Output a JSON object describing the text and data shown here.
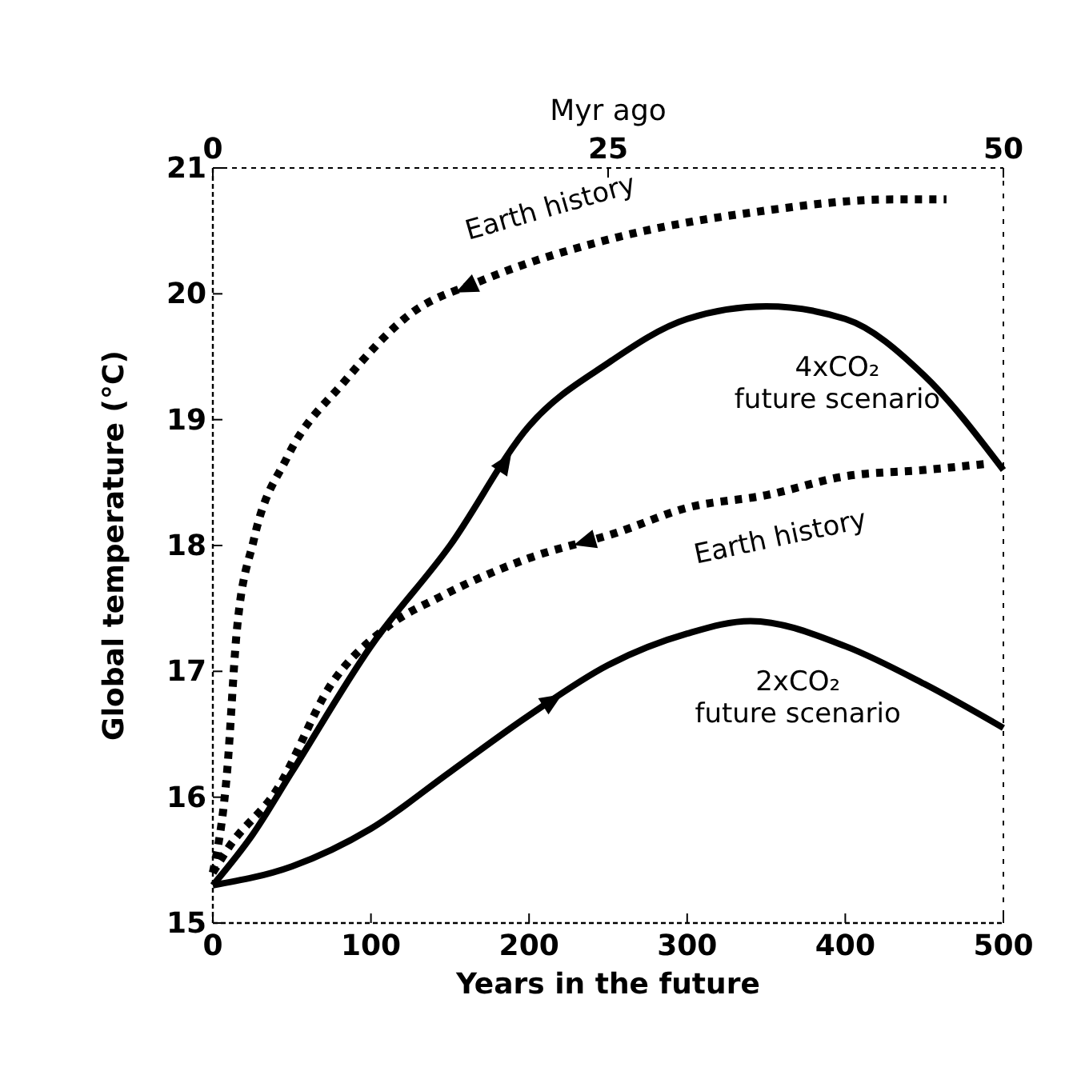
{
  "chart_data": {
    "type": "line",
    "xlabel": "Years in the future",
    "ylabel": "Global temperature (°C)",
    "x2label": "Myr ago",
    "xlim": [
      0,
      500
    ],
    "xticks": [
      0,
      100,
      200,
      300,
      400,
      500
    ],
    "ylim": [
      15,
      21
    ],
    "yticks": [
      15,
      16,
      17,
      18,
      19,
      20,
      21
    ],
    "x2lim": [
      0,
      50
    ],
    "x2ticks": [
      0,
      25,
      50
    ],
    "grid": false,
    "marker": "none",
    "series": [
      {
        "name": "Earth history",
        "color": "#000000",
        "line_style": "dotted",
        "x": [
          0,
          9,
          15,
          26,
          47,
          83,
          126,
          169,
          256,
          343,
          430,
          464
        ],
        "values": [
          15.4,
          16.2,
          17.3,
          18.05,
          18.7,
          19.3,
          19.85,
          20.1,
          20.45,
          20.65,
          20.75,
          20.75
        ]
      },
      {
        "name": "4xCO₂ future scenario",
        "color": "#000000",
        "line_style": "solid",
        "x": [
          0,
          25,
          50,
          100,
          150,
          200,
          250,
          300,
          350,
          400,
          450,
          500
        ],
        "values": [
          15.3,
          15.7,
          16.2,
          17.2,
          18.0,
          18.95,
          19.45,
          19.8,
          19.9,
          19.8,
          19.35,
          18.6
        ]
      },
      {
        "name": "Earth history",
        "color": "#000000",
        "line_style": "dotted",
        "x": [
          0,
          10,
          40,
          75,
          110,
          145,
          200,
          255,
          300,
          350,
          400,
          450,
          490
        ],
        "values": [
          15.4,
          15.6,
          16.05,
          16.9,
          17.35,
          17.6,
          17.9,
          18.1,
          18.3,
          18.4,
          18.55,
          18.6,
          18.65
        ]
      },
      {
        "name": "2xCO₂ future scenario",
        "color": "#000000",
        "line_style": "solid",
        "x": [
          0,
          50,
          100,
          150,
          200,
          250,
          300,
          340,
          400,
          450,
          500
        ],
        "values": [
          15.3,
          15.45,
          15.75,
          16.2,
          16.65,
          17.05,
          17.3,
          17.4,
          17.2,
          16.9,
          16.55
        ]
      }
    ]
  }
}
